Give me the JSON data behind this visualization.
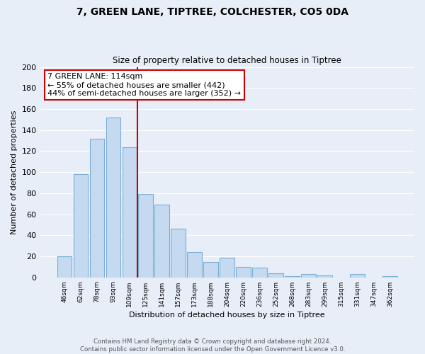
{
  "title": "7, GREEN LANE, TIPTREE, COLCHESTER, CO5 0DA",
  "subtitle": "Size of property relative to detached houses in Tiptree",
  "xlabel": "Distribution of detached houses by size in Tiptree",
  "ylabel": "Number of detached properties",
  "bar_labels": [
    "46sqm",
    "62sqm",
    "78sqm",
    "93sqm",
    "109sqm",
    "125sqm",
    "141sqm",
    "157sqm",
    "173sqm",
    "188sqm",
    "204sqm",
    "220sqm",
    "236sqm",
    "252sqm",
    "268sqm",
    "283sqm",
    "299sqm",
    "315sqm",
    "331sqm",
    "347sqm",
    "362sqm"
  ],
  "bar_values": [
    20,
    98,
    132,
    152,
    124,
    79,
    69,
    46,
    24,
    15,
    19,
    10,
    9,
    4,
    1,
    3,
    2,
    0,
    3,
    0,
    1
  ],
  "bar_color": "#c5d9f0",
  "bar_edge_color": "#7bafd4",
  "vline_x_index": 4.5,
  "annotation_title": "7 GREEN LANE: 114sqm",
  "annotation_line1": "← 55% of detached houses are smaller (442)",
  "annotation_line2": "44% of semi-detached houses are larger (352) →",
  "annotation_box_color": "#ffffff",
  "annotation_box_edge": "#cc0000",
  "vline_color": "#cc0000",
  "ylim": [
    0,
    200
  ],
  "yticks": [
    0,
    20,
    40,
    60,
    80,
    100,
    120,
    140,
    160,
    180,
    200
  ],
  "footer_line1": "Contains HM Land Registry data © Crown copyright and database right 2024.",
  "footer_line2": "Contains public sector information licensed under the Open Government Licence v3.0.",
  "bg_color": "#e8eef8",
  "plot_bg_color": "#e8eef8",
  "grid_color": "#ffffff",
  "title_fontsize": 10,
  "subtitle_fontsize": 8.5
}
